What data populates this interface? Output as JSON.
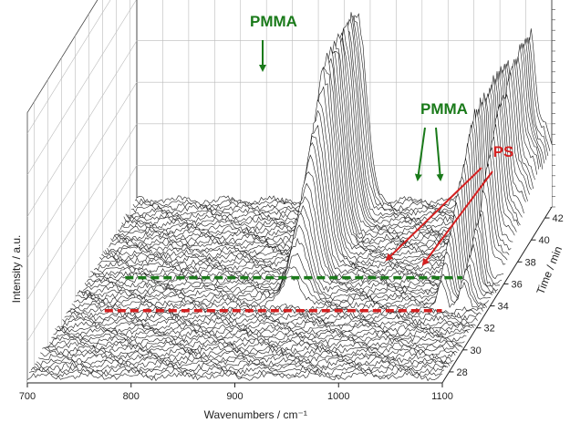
{
  "chart_data": {
    "type": "line",
    "projection": "3d-waterfall",
    "xlabel": "Wavenumbers / cm⁻¹",
    "ylabel": "Intensity / a.u.",
    "zlabel": "Time / min",
    "x_ticks": [
      "700",
      "800",
      "900",
      "1000",
      "1100"
    ],
    "time_ticks": [
      "28",
      "30",
      "32",
      "34",
      "36",
      "38",
      "40",
      "42"
    ],
    "xlim": [
      700,
      1100
    ],
    "time_range": [
      27,
      43
    ],
    "n_spectra": 60,
    "peaks": [
      {
        "label": "PMMA",
        "center": 912,
        "width": 9,
        "max_height": 0.95,
        "onset_min": 33.5,
        "color": "#1a7a1a"
      },
      {
        "label": "PMMA",
        "center": 1083,
        "width": 7,
        "max_height": 0.32,
        "onset_min": 36.0,
        "color": "#1a7a1a"
      },
      {
        "label": "PMMA",
        "center": 1096,
        "width": 7,
        "max_height": 0.28,
        "onset_min": 36.0,
        "color": "#1a7a1a"
      },
      {
        "label": "PS",
        "center": 1058,
        "width": 4,
        "max_height": 0.72,
        "onset_min": 33.0,
        "color": "#d42020"
      },
      {
        "label": "PS",
        "center": 1079,
        "width": 4,
        "max_height": 0.55,
        "onset_min": 33.0,
        "color": "#d42020"
      }
    ],
    "reference_lines": [
      {
        "time_min": 33.0,
        "color": "#d42020",
        "style": "dashed"
      },
      {
        "time_min": 36.0,
        "color": "#1a7a1a",
        "style": "dashed"
      }
    ],
    "annotations": [
      {
        "text": "PMMA",
        "color": "#1a7a1a"
      },
      {
        "text": "PMMA",
        "color": "#1a7a1a"
      },
      {
        "text": "PS",
        "color": "#d42020"
      }
    ],
    "grid": true,
    "legend": false
  }
}
